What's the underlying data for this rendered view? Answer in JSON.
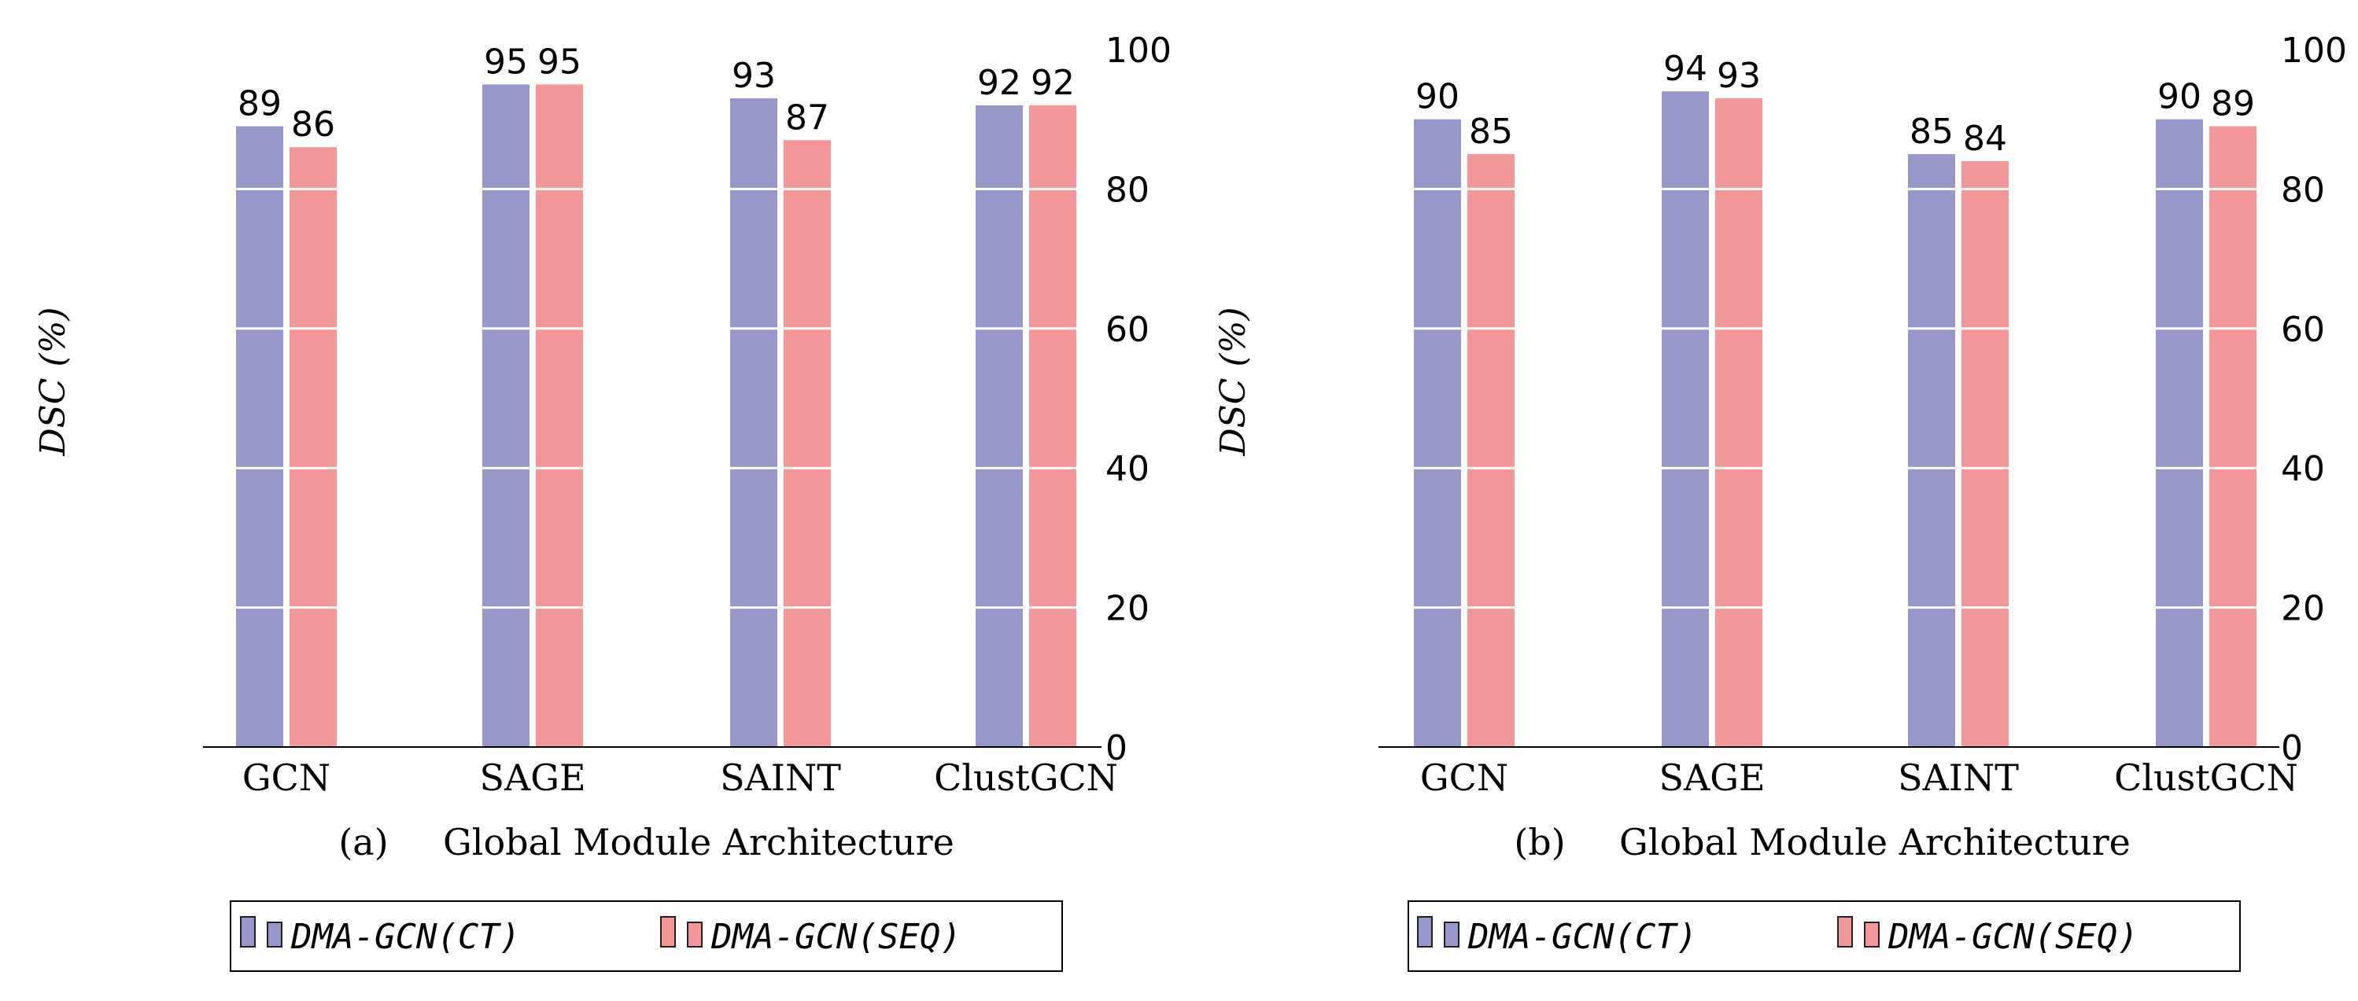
{
  "colors": {
    "ct": "#9798c9",
    "seq": "#f4979a"
  },
  "chart_data": [
    {
      "type": "bar",
      "panel": "(a)",
      "categories": [
        "GCN",
        "SAGE",
        "SAINT",
        "ClustGCN"
      ],
      "series": [
        {
          "name": "DMA-GCN(CT)",
          "values": [
            89,
            95,
            93,
            92
          ]
        },
        {
          "name": "DMA-GCN(SEQ)",
          "values": [
            86,
            95,
            87,
            92
          ]
        }
      ],
      "xlabel": "Global Module Architecture",
      "ylabel": "DSC (%)",
      "ylim": [
        0,
        100
      ],
      "yticks": [
        0,
        20,
        40,
        60,
        80,
        100
      ],
      "legend_position": "bottom"
    },
    {
      "type": "bar",
      "panel": "(b)",
      "categories": [
        "GCN",
        "SAGE",
        "SAINT",
        "ClustGCN"
      ],
      "series": [
        {
          "name": "DMA-GCN(CT)",
          "values": [
            90,
            94,
            85,
            90
          ]
        },
        {
          "name": "DMA-GCN(SEQ)",
          "values": [
            85,
            93,
            84,
            89
          ]
        }
      ],
      "xlabel": "Global Module Architecture",
      "ylabel": "DSC (%)",
      "ylim": [
        0,
        100
      ],
      "yticks": [
        0,
        20,
        40,
        60,
        80,
        100
      ],
      "legend_position": "bottom"
    }
  ]
}
